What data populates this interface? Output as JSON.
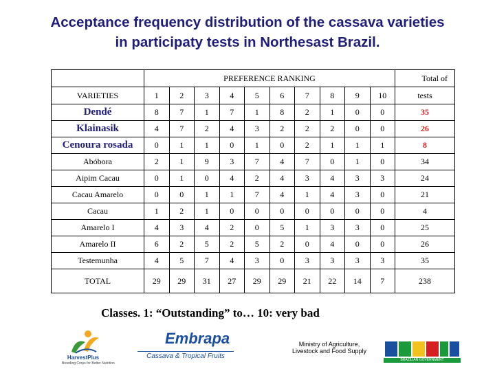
{
  "title": {
    "line1": "Acceptance frequency distribution of the cassava varieties",
    "line2": "in participaty tests in Northesast Brazil."
  },
  "table": {
    "preference_header": "PREFERENCE RANKING",
    "total_header_1": "Total of",
    "total_header_2": "tests",
    "varieties_header": "VARIETIES",
    "ranks": [
      "1",
      "2",
      "3",
      "4",
      "5",
      "6",
      "7",
      "8",
      "9",
      "10"
    ],
    "rows": [
      {
        "name": "Dendé",
        "values": [
          "8",
          "7",
          "1",
          "7",
          "1",
          "8",
          "2",
          "1",
          "0",
          "0"
        ],
        "total": "35",
        "highlight": true
      },
      {
        "name": "Klainasik",
        "values": [
          "4",
          "7",
          "2",
          "4",
          "3",
          "2",
          "2",
          "2",
          "0",
          "0"
        ],
        "total": "26",
        "highlight": true
      },
      {
        "name": "Cenoura rosada",
        "values": [
          "0",
          "1",
          "1",
          "0",
          "1",
          "0",
          "2",
          "1",
          "1",
          "1"
        ],
        "total": "8",
        "highlight": true
      },
      {
        "name": "Abóbora",
        "values": [
          "2",
          "1",
          "9",
          "3",
          "7",
          "4",
          "7",
          "0",
          "1",
          "0"
        ],
        "total": "34",
        "highlight": false
      },
      {
        "name": "Aipim Cacau",
        "values": [
          "0",
          "1",
          "0",
          "4",
          "2",
          "4",
          "3",
          "4",
          "3",
          "3"
        ],
        "total": "24",
        "highlight": false
      },
      {
        "name": "Cacau Amarelo",
        "values": [
          "0",
          "0",
          "1",
          "1",
          "7",
          "4",
          "1",
          "4",
          "3",
          "0"
        ],
        "total": "21",
        "highlight": false
      },
      {
        "name": "Cacau",
        "values": [
          "1",
          "2",
          "1",
          "0",
          "0",
          "0",
          "0",
          "0",
          "0",
          "0"
        ],
        "total": "4",
        "highlight": false
      },
      {
        "name": "Amarelo I",
        "values": [
          "4",
          "3",
          "4",
          "2",
          "0",
          "5",
          "1",
          "3",
          "3",
          "0"
        ],
        "total": "25",
        "highlight": false
      },
      {
        "name": "Amarelo II",
        "values": [
          "6",
          "2",
          "5",
          "2",
          "5",
          "2",
          "0",
          "4",
          "0",
          "0"
        ],
        "total": "26",
        "highlight": false
      },
      {
        "name": "Testemunha",
        "values": [
          "4",
          "5",
          "7",
          "4",
          "3",
          "0",
          "3",
          "3",
          "3",
          "3"
        ],
        "total": "35",
        "highlight": false
      }
    ],
    "total_row": {
      "label": "TOTAL",
      "values": [
        "29",
        "29",
        "31",
        "27",
        "29",
        "29",
        "21",
        "22",
        "14",
        "7"
      ],
      "total": "238"
    }
  },
  "classes_note": "Classes. 1: “Outstanding” to… 10: very bad",
  "logos": {
    "harvestplus": "HarvestPlus",
    "harvestplus_sub": "Breeding Crops for Better Nutrition",
    "embrapa": "Embrapa",
    "embrapa_sub": "Cassava & Tropical Fruits",
    "ministry": "Ministry of Agriculture, Livestock and Food Supply",
    "brasil": "BRASIL",
    "brasil_sub": "BRAZILIAN GOVERNMENT"
  },
  "colors": {
    "title": "#1f1d7a",
    "highlight_total": "#d42020",
    "embrapa": "#1a4e9e",
    "brasil_bar": "#1a9a3a"
  }
}
